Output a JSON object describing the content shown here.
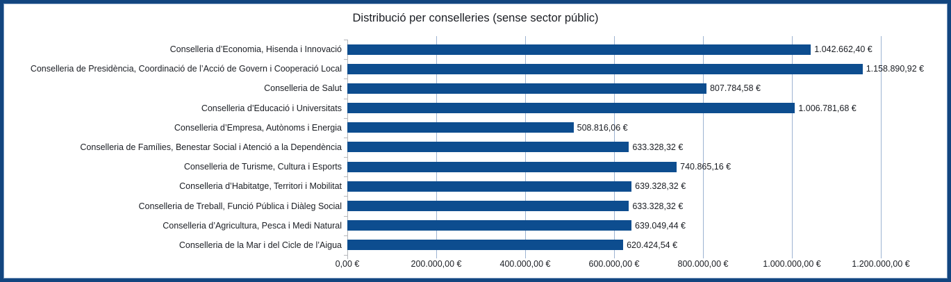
{
  "title": "Distribució per conselleries (sense sector públic)",
  "chart_data": {
    "type": "bar",
    "orientation": "horizontal",
    "title": "Distribució per conselleries (sense sector públic)",
    "xlabel": "",
    "ylabel": "",
    "legend": "none",
    "grid": true,
    "xlim": [
      0,
      1250000
    ],
    "categories": [
      "Conselleria d’Economia, Hisenda i Innovació",
      "Conselleria de Presidència, Coordinació de l’Acció de Govern i Cooperació Local",
      "Conselleria de Salut",
      "Conselleria d’Educació i Universitats",
      "Conselleria d’Empresa, Autònoms i Energia",
      "Conselleria de Famílies, Benestar Social i Atenció a la Dependència",
      "Conselleria de Turisme, Cultura i Esports",
      "Conselleria d’Habitatge, Territori i Mobilitat",
      "Conselleria de Treball, Funció Pública i Diàleg Social",
      "Conselleria d’Agricultura, Pesca i Medi Natural",
      "Conselleria de la Mar i del Cicle de l’Aigua"
    ],
    "values": [
      1042662.4,
      1158890.92,
      807784.58,
      1006781.68,
      508816.06,
      633328.32,
      740865.16,
      639328.32,
      633328.32,
      639049.44,
      620424.54
    ],
    "value_labels": [
      "1.042.662,40 €",
      "1.158.890,92 €",
      "807.784,58 €",
      "1.006.781,68 €",
      "508.816,06 €",
      "633.328,32 €",
      "740.865,16 €",
      "639.328,32 €",
      "633.328,32 €",
      "639.049,44 €",
      "620.424,54 €"
    ],
    "x_ticks": [
      {
        "value": 0,
        "label": "0,00 €"
      },
      {
        "value": 200000,
        "label": "200.000,00 €"
      },
      {
        "value": 400000,
        "label": "400.000,00 €"
      },
      {
        "value": 600000,
        "label": "600.000,00 €"
      },
      {
        "value": 800000,
        "label": "800.000,00 €"
      },
      {
        "value": 1000000,
        "label": "1.000.000,00 €"
      },
      {
        "value": 1200000,
        "label": "1.200.000,00 €"
      }
    ],
    "colors": {
      "bar": "#0d4d8f",
      "gridline": "#9db3d2",
      "axis": "#b3b6ba",
      "text": "#1a1d23",
      "frame_border": "#12457f",
      "frame_inner_line": "#7d9cc0",
      "background": "#ffffff"
    }
  }
}
